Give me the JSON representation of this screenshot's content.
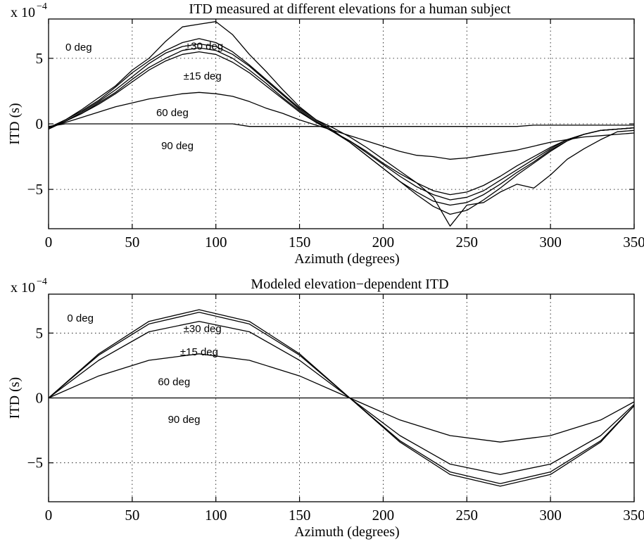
{
  "chart_data": [
    {
      "type": "line",
      "title": "ITD measured at different elevations for a human subject",
      "xlabel": "Azimuth (degrees)",
      "ylabel": "ITD (s)",
      "y_multiplier": "x 10",
      "y_multiplier_exponent": "−4",
      "xlim": [
        0,
        350
      ],
      "ylim": [
        -8,
        8
      ],
      "x_ticks": [
        0,
        50,
        100,
        150,
        200,
        250,
        300,
        350
      ],
      "y_ticks": [
        -5,
        0,
        5
      ],
      "y_tick_labels": [
        "−5",
        "0",
        "5"
      ],
      "grid": true,
      "annotations": [
        {
          "text": "0 deg",
          "x": 18,
          "y": 5.9
        },
        {
          "text": "±30 deg",
          "x": 93,
          "y": 6.0
        },
        {
          "text": "±15 deg",
          "x": 92,
          "y": 3.7
        },
        {
          "text": "60 deg",
          "x": 74,
          "y": 0.9
        },
        {
          "text": "90 deg",
          "x": 77,
          "y": -1.6
        }
      ],
      "x": [
        0,
        10,
        20,
        30,
        40,
        50,
        60,
        70,
        80,
        90,
        100,
        110,
        120,
        130,
        140,
        150,
        160,
        170,
        180,
        190,
        200,
        210,
        220,
        230,
        240,
        250,
        260,
        270,
        280,
        290,
        300,
        310,
        320,
        330,
        340,
        350
      ],
      "series": [
        {
          "values": [
            -0.3,
            0.3,
            1.1,
            2.0,
            2.9,
            4.1,
            5.0,
            6.3,
            7.4,
            7.6,
            7.8,
            6.8,
            5.3,
            4.0,
            2.6,
            1.3,
            0.3,
            -0.3,
            -1.0,
            -1.8,
            -2.7,
            -3.6,
            -4.5,
            -5.6,
            -7.8,
            -6.2,
            -6.0,
            -5.2,
            -4.6,
            -4.9,
            -3.9,
            -2.7,
            -1.9,
            -1.2,
            -0.6,
            -0.5
          ]
        },
        {
          "values": [
            -0.3,
            0.3,
            1.0,
            1.8,
            2.8,
            3.9,
            4.8,
            5.6,
            6.2,
            6.5,
            6.2,
            5.5,
            4.5,
            3.4,
            2.3,
            1.2,
            0.3,
            -0.5,
            -1.4,
            -2.4,
            -3.4,
            -4.4,
            -5.4,
            -6.3,
            -6.9,
            -6.6,
            -5.8,
            -4.9,
            -3.9,
            -3.0,
            -2.1,
            -1.3,
            -0.8,
            -0.5,
            -0.4,
            -0.3
          ]
        },
        {
          "values": [
            -0.4,
            0.2,
            0.9,
            1.7,
            2.6,
            3.6,
            4.6,
            5.4,
            5.9,
            6.1,
            5.9,
            5.3,
            4.4,
            3.3,
            2.2,
            1.1,
            0.2,
            -0.6,
            -1.4,
            -2.4,
            -3.4,
            -4.4,
            -5.2,
            -5.9,
            -6.2,
            -6.0,
            -5.4,
            -4.6,
            -3.7,
            -2.9,
            -2.0,
            -1.3,
            -0.8,
            -0.5,
            -0.4,
            -0.3
          ]
        },
        {
          "values": [
            -0.3,
            0.2,
            0.8,
            1.6,
            2.4,
            3.4,
            4.3,
            5.0,
            5.6,
            5.8,
            5.6,
            5.0,
            4.1,
            3.1,
            2.0,
            1.0,
            0.1,
            -0.6,
            -1.3,
            -2.2,
            -3.1,
            -4.0,
            -4.8,
            -5.4,
            -5.8,
            -5.6,
            -5.1,
            -4.3,
            -3.5,
            -2.7,
            -1.9,
            -1.2,
            -0.8,
            -0.5,
            -0.4,
            -0.3
          ]
        },
        {
          "values": [
            -0.3,
            0.2,
            0.8,
            1.5,
            2.3,
            3.2,
            4.1,
            4.8,
            5.3,
            5.5,
            5.3,
            4.7,
            3.9,
            2.9,
            1.9,
            0.9,
            0.1,
            -0.6,
            -1.3,
            -2.1,
            -3.0,
            -3.8,
            -4.5,
            -5.1,
            -5.4,
            -5.2,
            -4.7,
            -4.0,
            -3.2,
            -2.5,
            -1.8,
            -1.2,
            -0.8,
            -0.5,
            -0.4,
            -0.3
          ]
        },
        {
          "values": [
            -0.3,
            0.1,
            0.5,
            0.9,
            1.3,
            1.6,
            1.9,
            2.1,
            2.3,
            2.4,
            2.3,
            2.1,
            1.7,
            1.2,
            0.8,
            0.3,
            -0.1,
            -0.5,
            -0.9,
            -1.3,
            -1.7,
            -2.1,
            -2.4,
            -2.5,
            -2.7,
            -2.6,
            -2.4,
            -2.2,
            -2.0,
            -1.7,
            -1.4,
            -1.2,
            -1.0,
            -0.9,
            -0.8,
            -0.7
          ]
        },
        {
          "values": [
            -0.2,
            0.0,
            0.0,
            0.0,
            0.0,
            0.0,
            0.0,
            0.0,
            0.0,
            0.0,
            0.0,
            0.0,
            -0.2,
            -0.2,
            -0.2,
            -0.2,
            -0.2,
            -0.2,
            -0.2,
            -0.2,
            -0.2,
            -0.2,
            -0.2,
            -0.2,
            -0.2,
            -0.2,
            -0.2,
            -0.2,
            -0.2,
            -0.1,
            -0.1,
            -0.1,
            -0.1,
            -0.1,
            -0.1,
            -0.1
          ]
        }
      ]
    },
    {
      "type": "line",
      "title": "Modeled elevation−dependent ITD",
      "xlabel": "Azimuth (degrees)",
      "ylabel": "ITD (s)",
      "y_multiplier": "x 10",
      "y_multiplier_exponent": "−4",
      "xlim": [
        0,
        350
      ],
      "ylim": [
        -8,
        8
      ],
      "x_ticks": [
        0,
        50,
        100,
        150,
        200,
        250,
        300,
        350
      ],
      "y_ticks": [
        -5,
        0,
        5
      ],
      "y_tick_labels": [
        "−5",
        "0",
        "5"
      ],
      "grid": true,
      "annotations": [
        {
          "text": "0 deg",
          "x": 19,
          "y": 6.2
        },
        {
          "text": "±30 deg",
          "x": 92,
          "y": 5.4
        },
        {
          "text": "±15 deg",
          "x": 90,
          "y": 3.6
        },
        {
          "text": "60 deg",
          "x": 75,
          "y": 1.3
        },
        {
          "text": "90 deg",
          "x": 81,
          "y": -1.6
        }
      ],
      "x": [
        0,
        30,
        60,
        90,
        120,
        150,
        180,
        210,
        240,
        270,
        300,
        330,
        350
      ],
      "series": [
        {
          "values": [
            0,
            3.4,
            5.9,
            6.8,
            5.9,
            3.4,
            0,
            -3.4,
            -5.9,
            -6.8,
            -5.9,
            -3.4,
            -0.6
          ]
        },
        {
          "values": [
            0,
            3.3,
            5.7,
            6.6,
            5.7,
            3.3,
            0,
            -3.3,
            -5.7,
            -6.6,
            -5.7,
            -3.3,
            -0.6
          ]
        },
        {
          "values": [
            0,
            2.9,
            5.1,
            5.9,
            5.1,
            2.9,
            0,
            -2.9,
            -5.1,
            -5.9,
            -5.1,
            -2.9,
            -0.5
          ]
        },
        {
          "values": [
            0,
            1.7,
            2.9,
            3.4,
            2.9,
            1.7,
            0,
            -1.7,
            -2.9,
            -3.4,
            -2.9,
            -1.7,
            -0.3
          ]
        },
        {
          "values": [
            0,
            0,
            0,
            0,
            0,
            0,
            0,
            0,
            0,
            0,
            0,
            0,
            0
          ]
        }
      ]
    }
  ]
}
